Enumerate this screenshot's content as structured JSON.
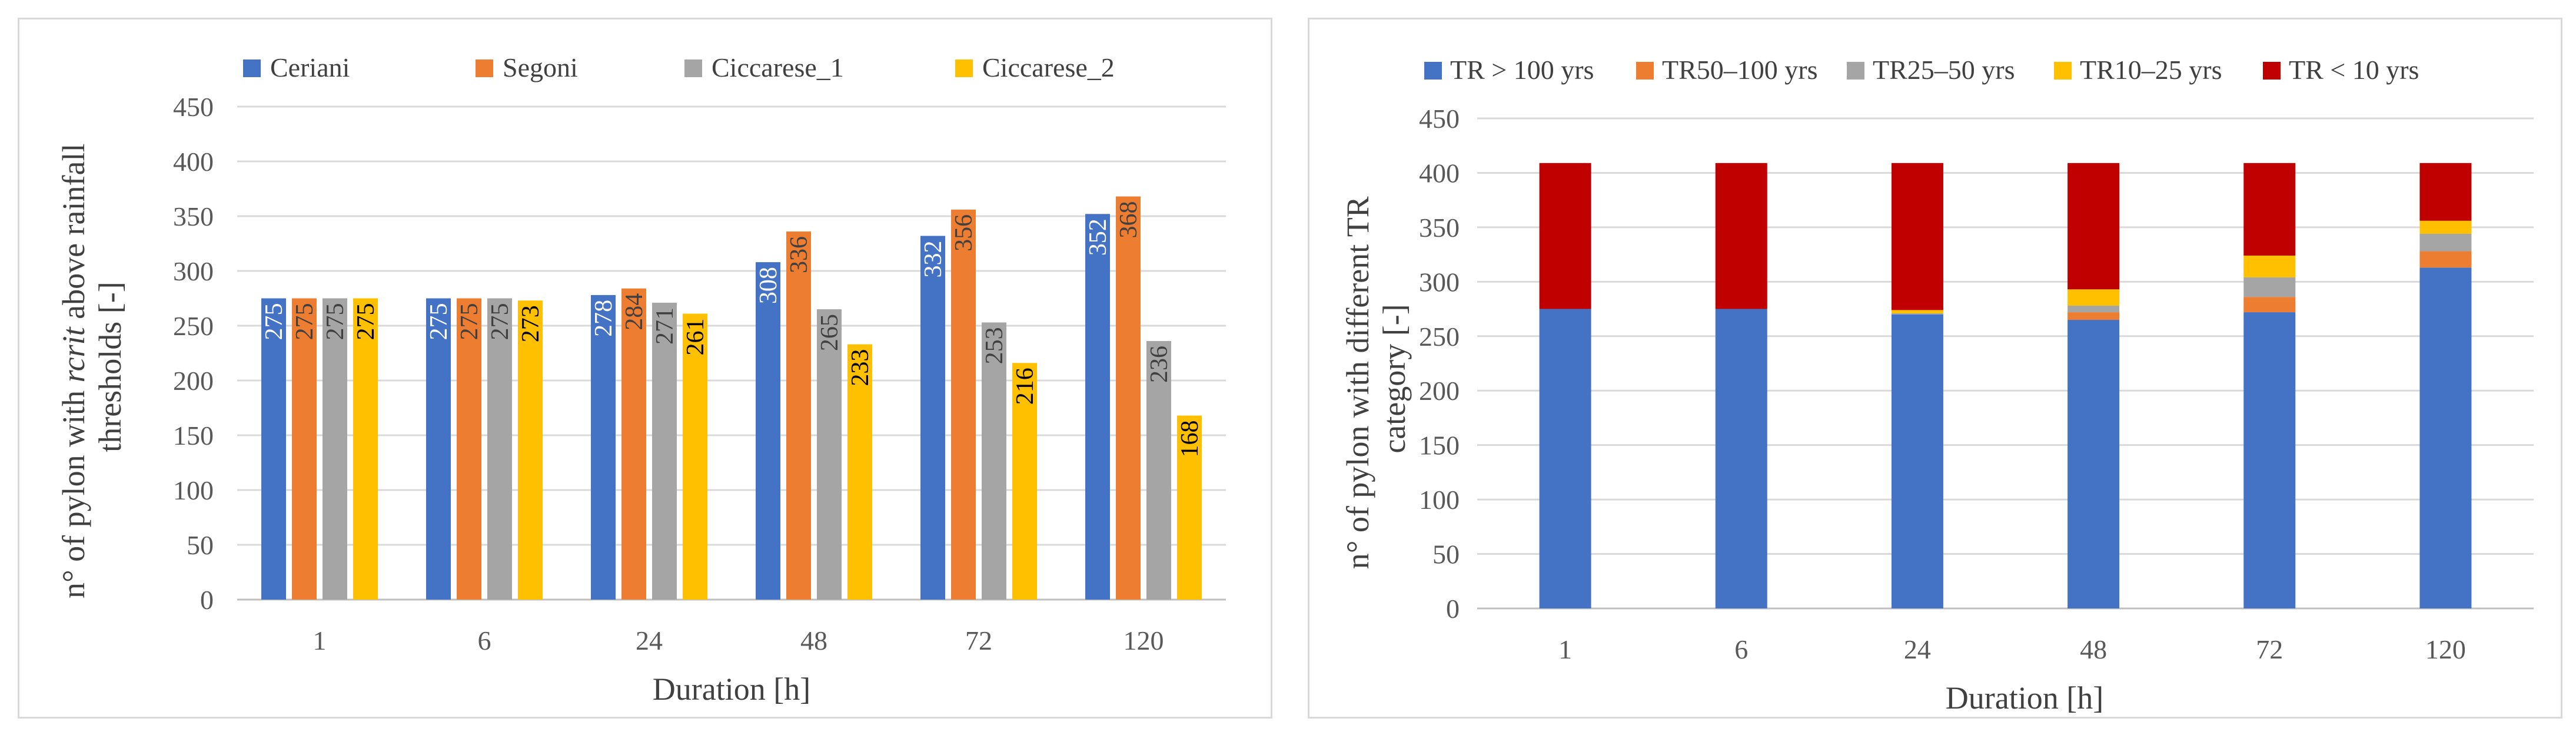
{
  "chart_data": [
    {
      "type": "bar",
      "categories": [
        "1",
        "6",
        "24",
        "48",
        "72",
        "120"
      ],
      "series": [
        {
          "name": "Ceriani",
          "color": "#4472c4",
          "labelColor": "#ffffff",
          "values": [
            275,
            275,
            278,
            308,
            332,
            352
          ]
        },
        {
          "name": "Segoni",
          "color": "#ed7d31",
          "labelColor": "#404040",
          "values": [
            275,
            275,
            284,
            336,
            356,
            368
          ]
        },
        {
          "name": "Ciccarese_1",
          "color": "#a5a5a5",
          "labelColor": "#404040",
          "values": [
            275,
            275,
            271,
            265,
            253,
            236
          ]
        },
        {
          "name": "Ciccarese_2",
          "color": "#ffc000",
          "labelColor": "#000000",
          "values": [
            275,
            273,
            261,
            233,
            216,
            168
          ]
        }
      ],
      "ylim": [
        0,
        450
      ],
      "yticks": [
        0,
        50,
        100,
        150,
        200,
        250,
        300,
        350,
        400,
        450
      ],
      "xlabel": "Duration [h]",
      "ylabel_line1_a": "n° of pylon with ",
      "ylabel_line1_b": "rcrit",
      "ylabel_line1_c": " above rainfall",
      "ylabel_line2": "thresholds [-]",
      "grid": true,
      "legend": "top"
    },
    {
      "type": "bar",
      "stacked": true,
      "categories": [
        "1",
        "6",
        "24",
        "48",
        "72",
        "120"
      ],
      "series": [
        {
          "name": "TR > 100 yrs",
          "color": "#4472c4",
          "values": [
            275,
            275,
            270,
            265,
            272,
            313
          ]
        },
        {
          "name": "TR50–100 yrs",
          "color": "#ed7d31",
          "values": [
            0,
            0,
            0,
            7,
            14,
            15
          ]
        },
        {
          "name": "TR25–50 yrs",
          "color": "#a5a5a5",
          "values": [
            0,
            0,
            1,
            6,
            18,
            16
          ]
        },
        {
          "name": "TR10–25 yrs",
          "color": "#ffc000",
          "values": [
            0,
            0,
            3,
            15,
            20,
            12
          ]
        },
        {
          "name": "TR < 10 yrs",
          "color": "#c00000",
          "values": [
            134,
            134,
            135,
            116,
            85,
            53
          ]
        }
      ],
      "ylim": [
        0,
        450
      ],
      "yticks": [
        0,
        50,
        100,
        150,
        200,
        250,
        300,
        350,
        400,
        450
      ],
      "xlabel": "Duration [h]",
      "ylabel_line1": "n° of pylon with different TR",
      "ylabel_line2": "category [-]",
      "grid": true,
      "legend": "top"
    }
  ]
}
